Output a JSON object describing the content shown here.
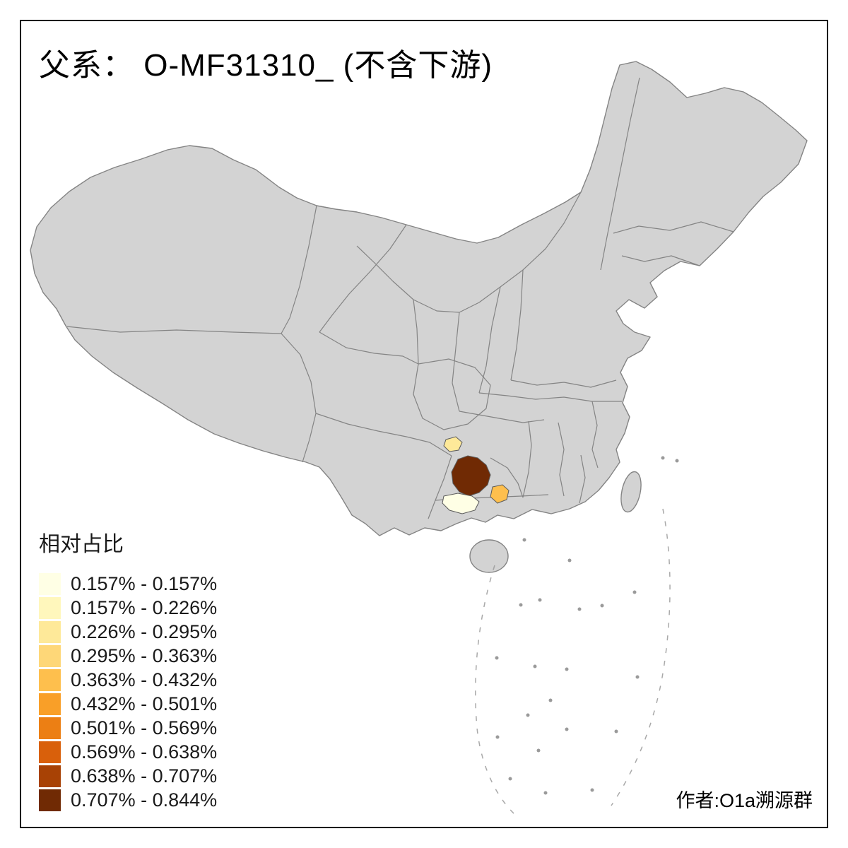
{
  "title": "父系： O-MF31310_ (不含下游)",
  "credit": "作者:O1a溯源群",
  "legend": {
    "title": "相对占比",
    "items": [
      {
        "label": "0.157% - 0.157%",
        "color": "#ffffe5"
      },
      {
        "label": "0.157% - 0.226%",
        "color": "#fff7bc"
      },
      {
        "label": "0.226% - 0.295%",
        "color": "#fee999"
      },
      {
        "label": "0.295% - 0.363%",
        "color": "#fed778"
      },
      {
        "label": "0.363% - 0.432%",
        "color": "#febf4d"
      },
      {
        "label": "0.432% - 0.501%",
        "color": "#f99f28"
      },
      {
        "label": "0.501% - 0.569%",
        "color": "#ec7f14"
      },
      {
        "label": "0.569% - 0.638%",
        "color": "#d9600b"
      },
      {
        "label": "0.638% - 0.707%",
        "color": "#a84205"
      },
      {
        "label": "0.707% - 0.844%",
        "color": "#702a04"
      }
    ]
  },
  "map": {
    "land_color": "#d3d3d3",
    "border_color": "#848484",
    "sea_mark_color": "#9a9a9a",
    "region_outline_color": "#5a5a5a",
    "regions": [
      {
        "name": "darkest-region",
        "range": "0.707% - 0.844%",
        "color": "#702a04"
      },
      {
        "name": "palest-region",
        "range": "0.157% - 0.157%",
        "color": "#ffffe5"
      },
      {
        "name": "light-yellow-region",
        "range": "0.226% - 0.295%",
        "color": "#fee999"
      },
      {
        "name": "orange-region",
        "range": "0.363% - 0.432%",
        "color": "#febf4d"
      }
    ]
  }
}
